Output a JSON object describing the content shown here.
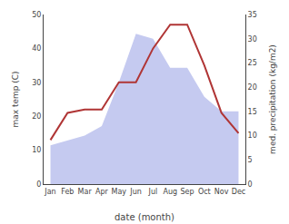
{
  "chart_data": {
    "type": "line",
    "categories": [
      "Jan",
      "Feb",
      "Mar",
      "Apr",
      "May",
      "Jun",
      "Jul",
      "Aug",
      "Sep",
      "Oct",
      "Nov",
      "Dec"
    ],
    "xlabel": "date (month)",
    "ylabel": "max temp (C)",
    "y2label": "med. precipitation (kg/m2)",
    "series": [
      {
        "type": "area",
        "axis": "y2",
        "color": "#c5caf0",
        "values": [
          8,
          9,
          10,
          12,
          21,
          31,
          30,
          24,
          24,
          18,
          15,
          15
        ]
      },
      {
        "type": "line",
        "color": "#b03535",
        "values": [
          13,
          21,
          22,
          22,
          30,
          30,
          40,
          47,
          47,
          35,
          21,
          15
        ]
      }
    ],
    "ylim": [
      0,
      50
    ],
    "yticks": [
      0,
      10,
      20,
      30,
      40,
      50
    ],
    "y2lim": [
      0,
      35
    ],
    "y2ticks": [
      0,
      5,
      10,
      15,
      20,
      25,
      30,
      35
    ],
    "grid": false
  }
}
